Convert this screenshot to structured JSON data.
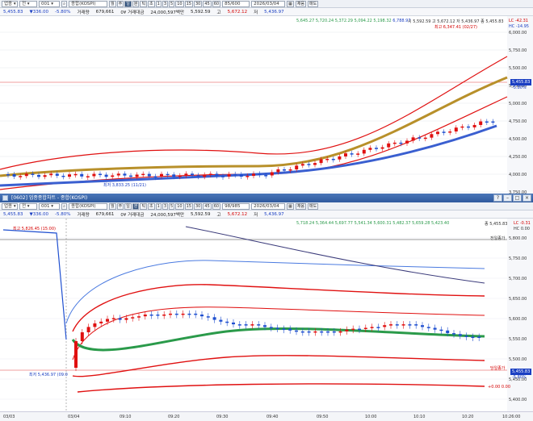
{
  "top": {
    "toolbar": {
      "type_select": "업종",
      "market_select": "전",
      "code_value": "001",
      "index_name": "종합(KOSPI)",
      "period_buttons": [
        "월",
        "주",
        "일",
        "분",
        "틱",
        "초",
        "1",
        "3",
        "5",
        "10",
        "15",
        "30",
        "45",
        "60"
      ],
      "selected_period": "일",
      "count_value": "85/600",
      "date_value": "2026/03/04",
      "fill_label": "채움",
      "draw_label": "매도"
    },
    "info": {
      "price": "5,455.83",
      "change": "336.00",
      "rate": "-5.80%",
      "volume_label": "거래량",
      "volume": "679,661",
      "amount_label": "0¥ 거래대금",
      "amount": "24,000,597백만",
      "start_label": "시",
      "start": "5,592.59",
      "high_label": "고",
      "high": "5,672.12",
      "low_label": "저",
      "low": "5,436.97"
    },
    "legend": {
      "ma_line": "5,645.27 5,720.24 5,372.29 5,094.22 5,198.32",
      "ma2": "6,788.97",
      "ohlc": "시 5,592.59 고 5,672.12 저 5,436.97 종 5,455.83",
      "lc": "LC -42.31",
      "hc": "HC -14.95"
    },
    "annotations": {
      "high_note": "최고 6,347.41 (02/27)",
      "low_note": "최저 3,833.25 (11/21)",
      "current_tag": "5,455.83",
      "current_pct": "-5.80%"
    },
    "y_ticks": [
      "6,000.00",
      "5,750.00",
      "5,500.00",
      "5,250.00",
      "5,000.00",
      "4,750.00",
      "4,500.00",
      "4,250.00",
      "4,000.00",
      "3,750.00"
    ]
  },
  "bottom": {
    "title": "[0602] 업종종합차트 - 종합(KOSPI)",
    "toolbar": {
      "type_select": "업종",
      "market_select": "전",
      "code_value": "001",
      "index_name": "종합(KOSPI)",
      "period_buttons": [
        "월",
        "주",
        "일",
        "분",
        "틱",
        "초",
        "1",
        "3",
        "5",
        "10",
        "15",
        "30",
        "45",
        "60"
      ],
      "selected_period": "분",
      "count_value": "98/985",
      "date_value": "2026/03/04",
      "fill_label": "채움",
      "draw_label": "매도"
    },
    "info": {
      "price": "5,455.83",
      "change": "336.00",
      "rate": "-5.80%",
      "volume_label": "거래량",
      "volume": "679,661",
      "amount_label": "0¥ 거래대금",
      "amount": "24,000,597백만",
      "start_label": "시",
      "start": "5,592.59",
      "high_label": "고",
      "high": "5,672.12",
      "low_label": "저",
      "low": "5,436.97"
    },
    "legend": {
      "ma_line": "5,718.24 5,364.44 5,697.77 5,541.34 5,600.31 5,482.37 5,659.28 5,423.40",
      "ohlc": "종 5,455.83",
      "lc": "LC -0.31",
      "hc": "HC 0.00"
    },
    "annotations": {
      "high_note": "최고 5,826.45 (15:00)",
      "low_note": "최저 5,436.97 (09:0",
      "prev_close_label": "전일종가",
      "current_label": "당일종가",
      "current_tag": "5,455.83",
      "current_pct": "-5.80%",
      "zero_label": "+0.00 0.00"
    },
    "y_ticks": [
      "5,800.00",
      "5,750.00",
      "5,700.00",
      "5,650.00",
      "5,600.00",
      "5,550.00",
      "5,500.00",
      "5,450.00",
      "5,400.00"
    ],
    "x_ticks": [
      "03/03",
      "03/04",
      "09:10",
      "09:20",
      "09:30",
      "09:40",
      "09:50",
      "10:00",
      "10:10",
      "10:20",
      "10:26:00"
    ]
  },
  "colors": {
    "up": "#e01010",
    "down": "#2050d0",
    "ma_gold": "#b8902a",
    "ma_blue": "#3a5fd0",
    "ma_green": "#2a9a4a",
    "ma_navy": "#3a3a7a",
    "ma_lightblue": "#4a7ae0"
  }
}
